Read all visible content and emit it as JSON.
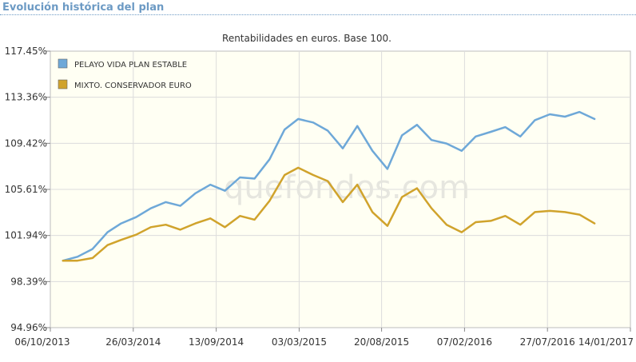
{
  "header": {
    "title": "Evolución histórica del plan"
  },
  "watermark": "quefondos.com",
  "colors": {
    "plot_bg": "#fffff3",
    "grid": "#dcdcdc",
    "title": "#6c9ac4"
  },
  "chart_data": {
    "type": "line",
    "title": "Rentabilidades en euros. Base 100.",
    "xlabel": "",
    "ylabel": "",
    "ylim": [
      94.96,
      117.45
    ],
    "y_ticks": [
      "117.45%",
      "113.36%",
      "109.42%",
      "105.61%",
      "101.94%",
      "98.39%",
      "94.96%"
    ],
    "y_tick_values": [
      117.45,
      113.36,
      109.42,
      105.61,
      101.94,
      98.39,
      94.96
    ],
    "x_ticks": [
      "06/10/2013",
      "26/03/2014",
      "13/09/2014",
      "03/03/2015",
      "20/08/2015",
      "07/02/2016",
      "27/07/2016",
      "14/01/2017"
    ],
    "x_tick_dates": [
      "2013-10-06",
      "2014-03-26",
      "2014-09-13",
      "2015-03-03",
      "2015-08-20",
      "2016-02-07",
      "2016-07-27",
      "2017-01-14"
    ],
    "grid": true,
    "legend_position": "top-left",
    "series": [
      {
        "name": "PELAYO VIDA PLAN ESTABLE",
        "color": "#6ea8d8",
        "points": [
          [
            "2013-11-01",
            100.0
          ],
          [
            "2013-12-01",
            100.3
          ],
          [
            "2014-01-01",
            100.9
          ],
          [
            "2014-02-01",
            102.2
          ],
          [
            "2014-03-01",
            102.9
          ],
          [
            "2014-04-01",
            103.4
          ],
          [
            "2014-05-01",
            104.1
          ],
          [
            "2014-06-01",
            104.6
          ],
          [
            "2014-07-01",
            104.3
          ],
          [
            "2014-08-01",
            105.3
          ],
          [
            "2014-09-01",
            106.0
          ],
          [
            "2014-10-01",
            105.5
          ],
          [
            "2014-11-01",
            106.6
          ],
          [
            "2014-12-01",
            106.5
          ],
          [
            "2015-01-01",
            108.1
          ],
          [
            "2015-02-01",
            110.6
          ],
          [
            "2015-03-01",
            111.5
          ],
          [
            "2015-04-01",
            111.2
          ],
          [
            "2015-05-01",
            110.5
          ],
          [
            "2015-06-01",
            109.0
          ],
          [
            "2015-07-01",
            110.9
          ],
          [
            "2015-08-01",
            108.8
          ],
          [
            "2015-09-01",
            107.3
          ],
          [
            "2015-10-01",
            110.1
          ],
          [
            "2015-11-01",
            111.0
          ],
          [
            "2015-12-01",
            109.7
          ],
          [
            "2016-01-01",
            109.4
          ],
          [
            "2016-02-01",
            108.8
          ],
          [
            "2016-03-01",
            110.0
          ],
          [
            "2016-04-01",
            110.4
          ],
          [
            "2016-05-01",
            110.8
          ],
          [
            "2016-06-01",
            110.0
          ],
          [
            "2016-07-01",
            111.4
          ],
          [
            "2016-08-01",
            111.9
          ],
          [
            "2016-09-01",
            111.7
          ],
          [
            "2016-10-01",
            112.1
          ],
          [
            "2016-11-01",
            111.5
          ]
        ]
      },
      {
        "name": "MIXTO. CONSERVADOR EURO",
        "color": "#d0a32c",
        "points": [
          [
            "2013-11-01",
            100.0
          ],
          [
            "2013-12-01",
            100.0
          ],
          [
            "2014-01-01",
            100.2
          ],
          [
            "2014-02-01",
            101.2
          ],
          [
            "2014-03-01",
            101.6
          ],
          [
            "2014-04-01",
            102.0
          ],
          [
            "2014-05-01",
            102.6
          ],
          [
            "2014-06-01",
            102.8
          ],
          [
            "2014-07-01",
            102.4
          ],
          [
            "2014-08-01",
            102.9
          ],
          [
            "2014-09-01",
            103.3
          ],
          [
            "2014-10-01",
            102.6
          ],
          [
            "2014-11-01",
            103.5
          ],
          [
            "2014-12-01",
            103.2
          ],
          [
            "2015-01-01",
            104.7
          ],
          [
            "2015-02-01",
            106.8
          ],
          [
            "2015-03-01",
            107.4
          ],
          [
            "2015-04-01",
            106.8
          ],
          [
            "2015-05-01",
            106.3
          ],
          [
            "2015-06-01",
            104.6
          ],
          [
            "2015-07-01",
            106.0
          ],
          [
            "2015-08-01",
            103.8
          ],
          [
            "2015-09-01",
            102.7
          ],
          [
            "2015-10-01",
            105.0
          ],
          [
            "2015-11-01",
            105.7
          ],
          [
            "2015-12-01",
            104.1
          ],
          [
            "2016-01-01",
            102.8
          ],
          [
            "2016-02-01",
            102.2
          ],
          [
            "2016-03-01",
            103.0
          ],
          [
            "2016-04-01",
            103.1
          ],
          [
            "2016-05-01",
            103.5
          ],
          [
            "2016-06-01",
            102.8
          ],
          [
            "2016-07-01",
            103.8
          ],
          [
            "2016-08-01",
            103.9
          ],
          [
            "2016-09-01",
            103.8
          ],
          [
            "2016-10-01",
            103.6
          ],
          [
            "2016-11-01",
            102.9
          ]
        ]
      }
    ]
  }
}
